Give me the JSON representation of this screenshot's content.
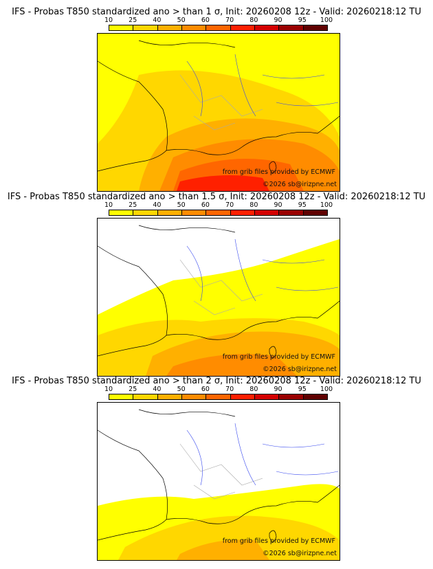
{
  "colorbar": {
    "ticks": [
      "10",
      "25",
      "40",
      "50",
      "60",
      "70",
      "80",
      "90",
      "95",
      "100"
    ],
    "colors": [
      "#ffff00",
      "#ffd700",
      "#ffb000",
      "#ff8c00",
      "#ff6600",
      "#ff2000",
      "#d40000",
      "#9a0000",
      "#600000"
    ]
  },
  "panels": [
    {
      "title": "IFS - Probas T850  standardized ano > than 1 σ, Init: 20260208 12z - Valid: 20260218:12 TU",
      "threshold_sigma": 1
    },
    {
      "title": "IFS - Probas T850  standardized ano > than 1.5 σ, Init: 20260208 12z - Valid: 20260218:12 TU",
      "threshold_sigma": 1.5
    },
    {
      "title": "IFS - Probas T850  standardized ano > than 2 σ, Init: 20260208 12z - Valid: 20260218:12 TU",
      "threshold_sigma": 2
    }
  ],
  "credits": {
    "source": "from grib files provided by ECMWF",
    "copyright": "©2026 sb@irizpne.net"
  }
}
